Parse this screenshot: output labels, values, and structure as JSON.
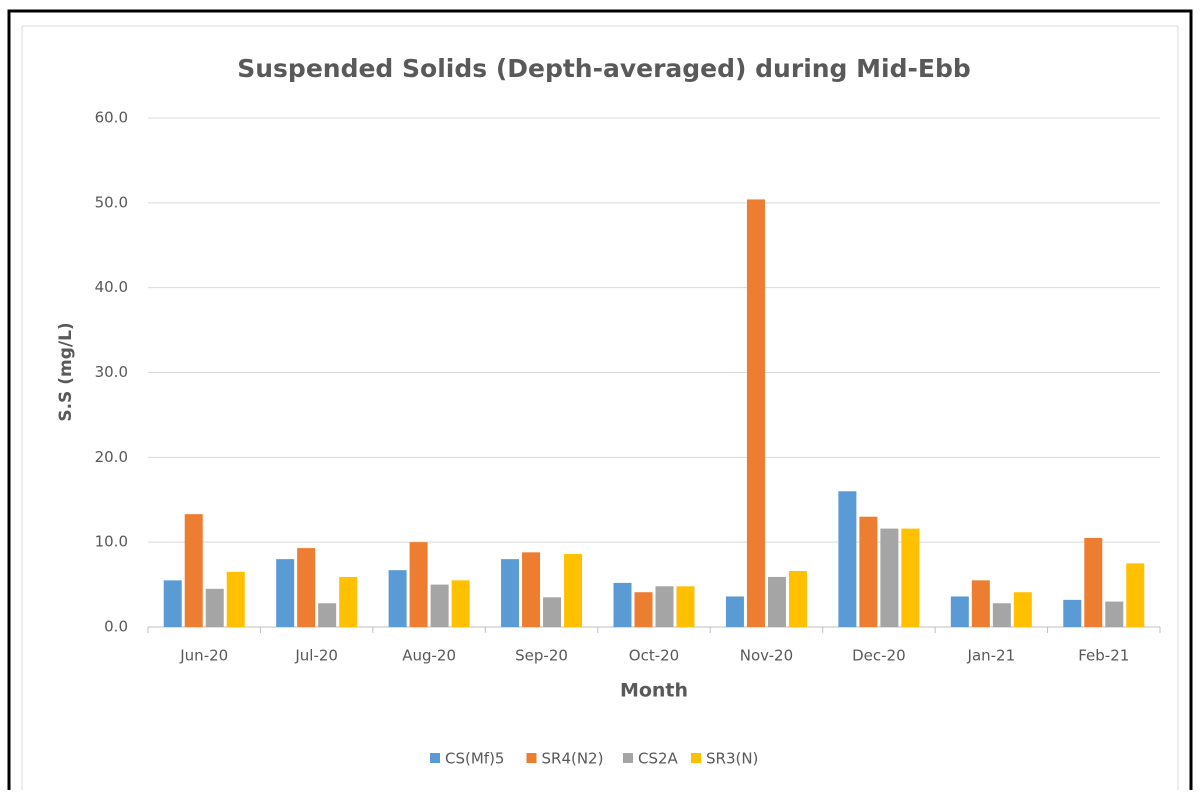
{
  "chart_data": {
    "type": "bar",
    "title": "Suspended Solids (Depth-averaged) during Mid-Ebb",
    "x_label": "Month",
    "y_label": "S.S (mg/L)",
    "categories": [
      "Jun-20",
      "Jul-20",
      "Aug-20",
      "Sep-20",
      "Oct-20",
      "Nov-20",
      "Dec-20",
      "Jan-21",
      "Feb-21"
    ],
    "series": [
      {
        "name": "CS(Mf)5",
        "color": "#5b9bd5",
        "values": [
          5.5,
          8.0,
          6.7,
          8.0,
          5.2,
          3.6,
          16.0,
          3.6,
          3.2
        ]
      },
      {
        "name": "SR4(N2)",
        "color": "#ed7d31",
        "values": [
          13.3,
          9.3,
          10.0,
          8.8,
          4.1,
          50.4,
          13.0,
          5.5,
          10.5
        ]
      },
      {
        "name": "CS2A",
        "color": "#a5a5a5",
        "values": [
          4.5,
          2.8,
          5.0,
          3.5,
          4.8,
          5.9,
          11.6,
          2.8,
          3.0
        ]
      },
      {
        "name": "SR3(N)",
        "color": "#ffc000",
        "values": [
          6.5,
          5.9,
          5.5,
          8.6,
          4.8,
          6.6,
          11.6,
          4.1,
          7.5
        ]
      }
    ],
    "ylim": [
      0,
      60
    ],
    "yticks": [
      {
        "value": 0,
        "label": "0.0"
      },
      {
        "value": 10,
        "label": "10.0"
      },
      {
        "value": 20,
        "label": "20.0"
      },
      {
        "value": 30,
        "label": "30.0"
      },
      {
        "value": 40,
        "label": "40.0"
      },
      {
        "value": 50,
        "label": "50.0"
      },
      {
        "value": 60,
        "label": "60.0"
      }
    ],
    "grid": true,
    "legend": "bottom"
  }
}
